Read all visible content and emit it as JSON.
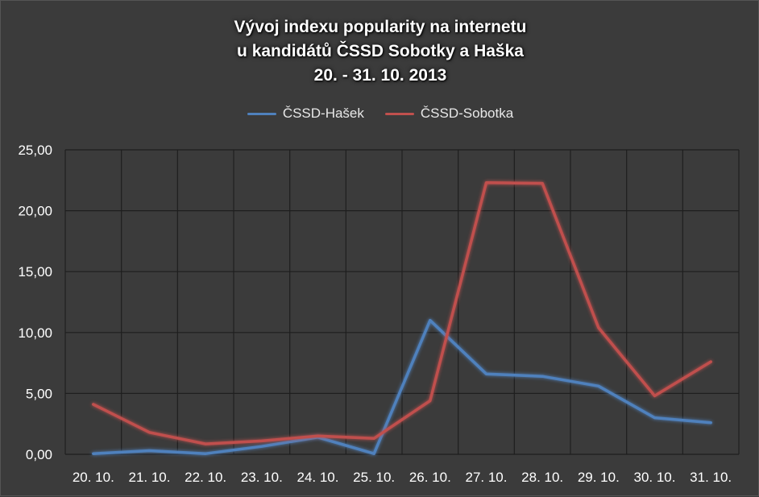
{
  "chart_data": {
    "type": "line",
    "title_lines": [
      "Vývoj indexu popularity na internetu",
      "u kandidátů ČSSD Sobotky a Haška",
      "20. - 31. 10. 2013"
    ],
    "categories": [
      "20. 10.",
      "21. 10.",
      "22. 10.",
      "23. 10.",
      "24. 10.",
      "25. 10.",
      "26. 10.",
      "27. 10.",
      "28. 10.",
      "29. 10.",
      "30. 10.",
      "31. 10."
    ],
    "series": [
      {
        "name": "ČSSD-Hašek",
        "color": "#4f81bd",
        "values": [
          0.05,
          0.3,
          0.05,
          0.65,
          1.4,
          0.05,
          11.0,
          6.6,
          6.4,
          5.6,
          3.0,
          2.6
        ]
      },
      {
        "name": "ČSSD-Sobotka",
        "color": "#c0504d",
        "values": [
          4.1,
          1.8,
          0.85,
          1.1,
          1.5,
          1.3,
          4.4,
          22.3,
          22.25,
          10.4,
          4.8,
          7.6
        ]
      }
    ],
    "y_ticks": [
      "0,00",
      "5,00",
      "10,00",
      "15,00",
      "20,00",
      "25,00"
    ],
    "ylim": [
      0,
      25
    ],
    "grid": true,
    "legend_position": "top"
  }
}
